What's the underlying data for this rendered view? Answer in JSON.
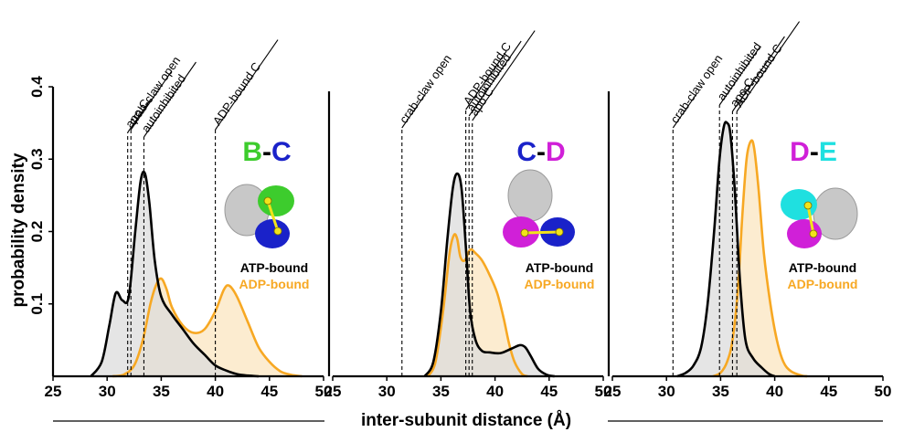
{
  "colors": {
    "atp": "#000000",
    "adp": "#f7a823",
    "atp_fill": "#dcdcdc",
    "adp_fill": "#fbe9c8",
    "subunit_B": "#3dcc2d",
    "subunit_C": "#1a22c9",
    "subunit_D": "#d020d8",
    "subunit_E": "#1fe0e0"
  },
  "chart_data": [
    {
      "type": "area",
      "panel": "B-C",
      "pair": {
        "first": "B",
        "dash": "-",
        "second": "C"
      },
      "legend": {
        "atp": "ATP-bound",
        "adp": "ADP-bound"
      },
      "xlim": [
        25,
        50
      ],
      "ylim": [
        0,
        0.4
      ],
      "xticks": [
        25,
        30,
        35,
        40,
        45,
        50
      ],
      "yticks": [
        0.1,
        0.2,
        0.3,
        0.4
      ],
      "references": [
        {
          "label": "apo C",
          "x": 31.9
        },
        {
          "label": "crab-claw open",
          "x": 32.2
        },
        {
          "label": "autoinhibited",
          "x": 33.4
        },
        {
          "label": "ADP-bound C",
          "x": 40.0
        }
      ],
      "series": [
        {
          "name": "ATP-bound",
          "x": [
            28.5,
            29.5,
            30.2,
            30.8,
            31.4,
            32.0,
            32.6,
            33.1,
            33.5,
            33.9,
            34.4,
            35.0,
            36.0,
            37.0,
            38.0,
            39.0,
            40.0,
            41.0,
            42.0,
            43.0,
            44.0
          ],
          "y": [
            0.0,
            0.02,
            0.07,
            0.115,
            0.105,
            0.11,
            0.2,
            0.27,
            0.28,
            0.24,
            0.16,
            0.11,
            0.085,
            0.065,
            0.045,
            0.03,
            0.015,
            0.008,
            0.003,
            0.001,
            0.0
          ]
        },
        {
          "name": "ADP-bound",
          "x": [
            30.5,
            31.5,
            32.5,
            33.3,
            34.0,
            34.5,
            35.0,
            35.5,
            36.0,
            37.0,
            38.0,
            39.0,
            40.0,
            40.8,
            41.3,
            42.0,
            43.0,
            44.0,
            45.0,
            46.0,
            47.0,
            48.0
          ],
          "y": [
            0.0,
            0.002,
            0.015,
            0.05,
            0.1,
            0.125,
            0.135,
            0.12,
            0.095,
            0.07,
            0.06,
            0.065,
            0.09,
            0.12,
            0.125,
            0.11,
            0.075,
            0.04,
            0.02,
            0.007,
            0.002,
            0.0
          ]
        }
      ]
    },
    {
      "type": "area",
      "panel": "C-D",
      "pair": {
        "first": "C",
        "dash": "-",
        "second": "D"
      },
      "legend": {
        "atp": "ATP-bound",
        "adp": "ADP-bound"
      },
      "xlim": [
        25,
        50
      ],
      "ylim": [
        0,
        0.4
      ],
      "xticks": [
        25,
        30,
        35,
        40,
        45,
        50
      ],
      "yticks": [
        0.1,
        0.2,
        0.3,
        0.4
      ],
      "references": [
        {
          "label": "crab-claw open",
          "x": 31.4
        },
        {
          "label": "ADP-bound C",
          "x": 37.3
        },
        {
          "label": "autoinhibited",
          "x": 37.6
        },
        {
          "label": "apo C",
          "x": 37.9
        }
      ],
      "series": [
        {
          "name": "ATP-bound",
          "x": [
            33.5,
            34.3,
            35.0,
            35.6,
            36.1,
            36.5,
            36.9,
            37.3,
            37.7,
            38.2,
            38.8,
            39.5,
            40.5,
            41.5,
            42.3,
            42.8,
            43.3,
            44.0,
            44.8,
            45.5
          ],
          "y": [
            0.0,
            0.02,
            0.09,
            0.19,
            0.26,
            0.28,
            0.26,
            0.18,
            0.09,
            0.05,
            0.035,
            0.033,
            0.032,
            0.038,
            0.043,
            0.04,
            0.028,
            0.01,
            0.002,
            0.0
          ]
        },
        {
          "name": "ADP-bound",
          "x": [
            33.8,
            34.5,
            35.2,
            35.8,
            36.2,
            36.5,
            36.8,
            37.2,
            37.7,
            38.2,
            38.8,
            39.5,
            40.2,
            40.8,
            41.3,
            41.8,
            42.5,
            43.0
          ],
          "y": [
            0.0,
            0.02,
            0.09,
            0.17,
            0.195,
            0.19,
            0.165,
            0.16,
            0.175,
            0.17,
            0.16,
            0.14,
            0.115,
            0.08,
            0.045,
            0.02,
            0.003,
            0.0
          ]
        }
      ]
    },
    {
      "type": "area",
      "panel": "D-E",
      "pair": {
        "first": "D",
        "dash": "-",
        "second": "E"
      },
      "legend": {
        "atp": "ATP-bound",
        "adp": "ADP-bound"
      },
      "xlim": [
        25,
        50
      ],
      "ylim": [
        0,
        0.4
      ],
      "xticks": [
        25,
        30,
        35,
        40,
        45,
        50
      ],
      "yticks": [
        0.1,
        0.2,
        0.3,
        0.4
      ],
      "references": [
        {
          "label": "crab-claw open",
          "x": 30.6
        },
        {
          "label": "autoinhibited",
          "x": 34.9
        },
        {
          "label": "apo C",
          "x": 36.1
        },
        {
          "label": "ADP-bound C",
          "x": 36.5
        }
      ],
      "series": [
        {
          "name": "ATP-bound",
          "x": [
            31.0,
            31.8,
            32.5,
            33.2,
            33.8,
            34.4,
            34.9,
            35.3,
            35.6,
            35.9,
            36.3,
            36.8,
            37.3,
            38.0,
            38.8,
            39.5,
            40.0
          ],
          "y": [
            0.0,
            0.005,
            0.015,
            0.04,
            0.1,
            0.2,
            0.3,
            0.345,
            0.35,
            0.335,
            0.26,
            0.13,
            0.05,
            0.025,
            0.012,
            0.003,
            0.0
          ]
        },
        {
          "name": "ADP-bound",
          "x": [
            34.3,
            35.0,
            35.6,
            36.1,
            36.6,
            37.0,
            37.4,
            37.8,
            38.1,
            38.5,
            39.0,
            39.6,
            40.2,
            40.8,
            41.5,
            42.5,
            43.0
          ],
          "y": [
            0.0,
            0.005,
            0.02,
            0.05,
            0.12,
            0.22,
            0.3,
            0.325,
            0.315,
            0.26,
            0.17,
            0.1,
            0.05,
            0.02,
            0.007,
            0.001,
            0.0
          ]
        }
      ]
    }
  ],
  "axes": {
    "ylabel": "probability density",
    "xlabel": "inter-subunit distance (Å)"
  }
}
